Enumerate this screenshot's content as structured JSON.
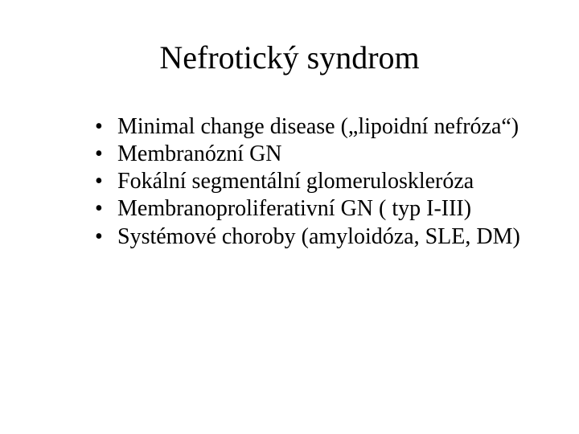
{
  "slide": {
    "title": "Nefrotický syndrom",
    "title_fontsize": 40,
    "title_color": "#000000",
    "background_color": "#ffffff",
    "font_family": "Times New Roman",
    "bullets": {
      "fontsize": 28,
      "color": "#000000",
      "marker": "•",
      "items": [
        "Minimal change disease („lipoidní nefróza“)",
        "Membranózní GN",
        "Fokální segmentální glomeruloskleróza",
        "Membranoproliferativní GN ( typ I-III)",
        "Systémové choroby (amyloidóza, SLE, DM)"
      ]
    }
  }
}
